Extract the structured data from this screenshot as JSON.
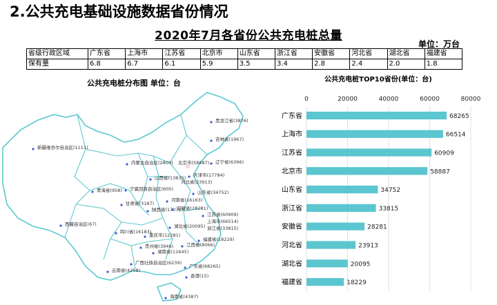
{
  "heading": "2.公共充电基础设施数据省份情况",
  "main_title": "2020年7月各省份公共充电桩总量",
  "unit": "单位：万台",
  "table": {
    "header_label": "省级行政区域",
    "value_label": "保有量",
    "provinces": [
      "广东省",
      "上海市",
      "江苏省",
      "北京市",
      "山东省",
      "浙江省",
      "安徽省",
      "河北省",
      "湖北省",
      "福建省"
    ],
    "values": [
      "6.8",
      "6.7",
      "6.1",
      "5.9",
      "3.5",
      "3.4",
      "2.8",
      "2.4",
      "2.0",
      "1.8"
    ]
  },
  "map": {
    "title": "公共充电桩分布图  单位：台",
    "labels": [
      "黑龙江省(3876)",
      "吉林省(1967)",
      "辽宁省(6396)",
      "新疆维吾尔自治区(1111)",
      "内蒙古自治区(2800)",
      "北京市(58887)",
      "天津市(17784)",
      "河北省(23913)",
      "山西省(13835)",
      "青海省(958)",
      "宁夏回族自治区(605)",
      "甘肃省(3187)",
      "陕西省(17072)",
      "河南省(16163)",
      "山东省(34752)",
      "安徽省(28281)",
      "江苏省(60909)",
      "上海市(66514)",
      "浙江省(33815)",
      "湖北省(20095)",
      "西藏自治区(67)",
      "四川省(16183)",
      "重庆市(12281)",
      "贵州省(3946)",
      "湖南省(11645)",
      "江西省(8066)",
      "福建省(18229)",
      "云南省(4258)",
      "广西壮族自治区(6239)",
      "广东省(68265)",
      "香港(15)",
      "海南省(4387)"
    ]
  },
  "chart_data": {
    "type": "bar",
    "orientation": "horizontal",
    "title": "公共充电桩TOP10省份(单位：台)",
    "categories": [
      "广东省",
      "上海市",
      "江苏省",
      "北京市",
      "山东省",
      "浙江省",
      "安徽省",
      "河北省",
      "湖北省",
      "福建省"
    ],
    "values": [
      68265,
      66514,
      60909,
      58887,
      34752,
      33815,
      28281,
      23913,
      20095,
      18229
    ],
    "xlim": [
      0,
      80000
    ],
    "xticks": [
      "0",
      "20000",
      "40000",
      "60000",
      "80000"
    ],
    "bar_color": "#5BC6D0",
    "grid": true
  }
}
